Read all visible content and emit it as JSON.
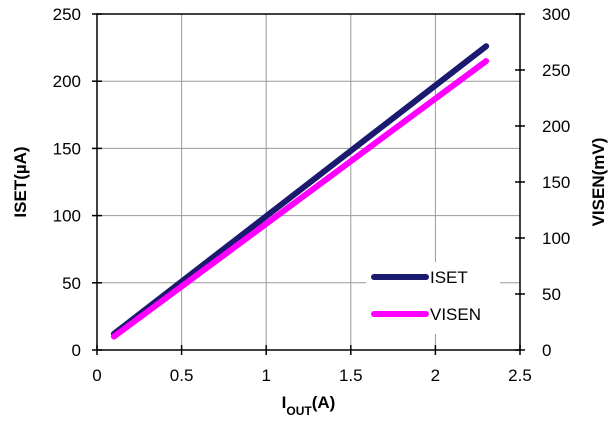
{
  "chart_data": {
    "type": "line",
    "xlabel": {
      "main": "I",
      "subscript": "OUT",
      "suffix": "(A)"
    },
    "ylabel_left": "ISET(µA)",
    "ylabel_right": "VISEN(mV)",
    "xlim": [
      0,
      2.5
    ],
    "ylim_left": [
      0,
      250
    ],
    "ylim_right": [
      0,
      300
    ],
    "x_ticks": [
      "0",
      "0.5",
      "1",
      "1.5",
      "2",
      "2.5"
    ],
    "y_left_ticks": [
      "0",
      "50",
      "100",
      "150",
      "200",
      "250"
    ],
    "y_right_ticks": [
      "0",
      "50",
      "100",
      "150",
      "200",
      "250",
      "300"
    ],
    "grid": true,
    "legend_position": "bottom-right",
    "series": [
      {
        "name": "ISET",
        "axis": "left",
        "color": "#1a1a6e",
        "x": [
          0.1,
          2.3
        ],
        "y": [
          12,
          226
        ]
      },
      {
        "name": "VISEN",
        "axis": "right",
        "color": "#ff00ff",
        "x": [
          0.1,
          2.3
        ],
        "y": [
          12,
          258
        ]
      }
    ]
  }
}
